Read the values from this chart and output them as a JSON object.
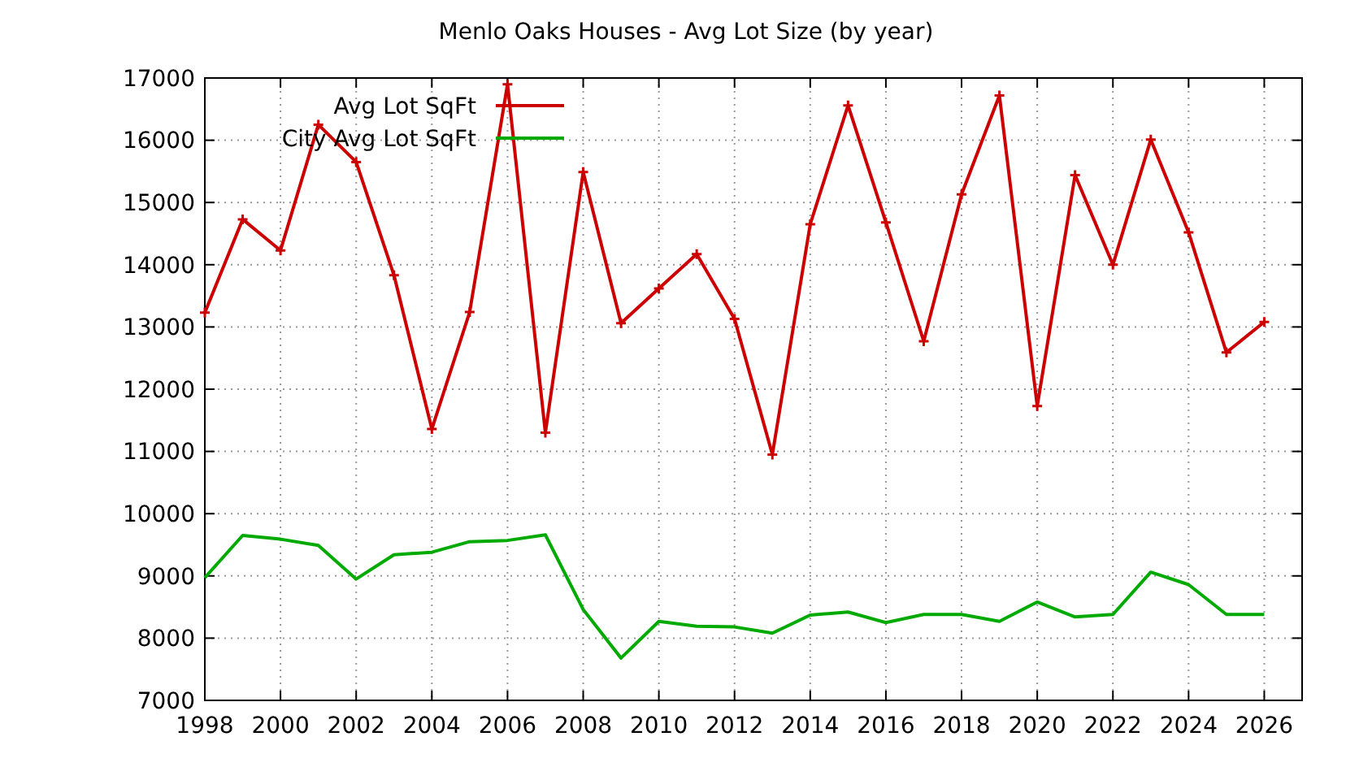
{
  "chart_data": {
    "type": "line",
    "title": "Menlo Oaks Houses - Avg Lot Size (by year)",
    "x": [
      1998,
      1999,
      2000,
      2001,
      2002,
      2003,
      2004,
      2005,
      2006,
      2007,
      2008,
      2009,
      2010,
      2011,
      2012,
      2013,
      2014,
      2015,
      2016,
      2017,
      2018,
      2019,
      2020,
      2021,
      2022,
      2023,
      2024,
      2025,
      2026
    ],
    "series": [
      {
        "name": "Avg Lot SqFt",
        "color": "#cc0000",
        "marker": "cross",
        "values": [
          13230,
          14730,
          14230,
          16250,
          15650,
          13830,
          11360,
          13240,
          16900,
          11300,
          15490,
          13060,
          13620,
          14170,
          13130,
          10950,
          14650,
          16560,
          14680,
          12770,
          15130,
          16720,
          11730,
          15440,
          14000,
          16010,
          14520,
          12590,
          13080
        ]
      },
      {
        "name": "City Avg Lot SqFt",
        "color": "#00aa00",
        "marker": "none",
        "values": [
          8970,
          9650,
          9590,
          9490,
          8950,
          9340,
          9380,
          9550,
          9570,
          9660,
          8460,
          7680,
          8270,
          8190,
          8180,
          8080,
          8370,
          8420,
          8250,
          8380,
          8380,
          8270,
          8580,
          8340,
          8380,
          9060,
          8860,
          8380,
          8380
        ]
      }
    ],
    "xlim": [
      1998,
      2027
    ],
    "xticks": [
      1998,
      2000,
      2002,
      2004,
      2006,
      2008,
      2010,
      2012,
      2014,
      2016,
      2018,
      2020,
      2022,
      2024,
      2026
    ],
    "ylim": [
      7000,
      17000
    ],
    "yticks": [
      7000,
      8000,
      9000,
      10000,
      11000,
      12000,
      13000,
      14000,
      15000,
      16000,
      17000
    ],
    "grid": true,
    "legend": "top left",
    "line_style": "solid"
  }
}
